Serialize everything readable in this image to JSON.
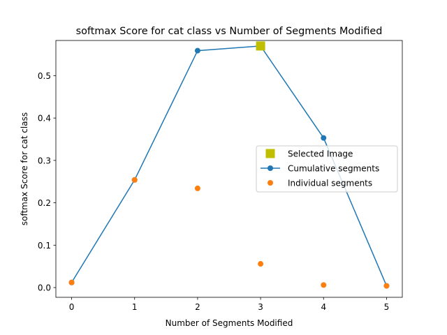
{
  "chart_data": {
    "type": "line",
    "title": "softmax Score for cat class vs Number of Segments Modified",
    "xlabel": "Number of Segments Modified",
    "ylabel": "softmax Score for cat class",
    "xlim": [
      -0.25,
      5.25
    ],
    "ylim": [
      -0.023,
      0.583
    ],
    "xticks": [
      "0",
      "1",
      "2",
      "3",
      "4",
      "5"
    ],
    "yticks": [
      "0.0",
      "0.1",
      "0.2",
      "0.3",
      "0.4",
      "0.5"
    ],
    "grid": false,
    "legend_position": "center-right",
    "series": [
      {
        "name": "Selected Image",
        "kind": "marker",
        "marker": "square",
        "color": "#bfbf00",
        "x": [
          3
        ],
        "y": [
          0.57
        ]
      },
      {
        "name": "Cumulative segments",
        "kind": "line",
        "marker": "circle",
        "color": "#1f77b4",
        "x": [
          0,
          1,
          2,
          3,
          4,
          5
        ],
        "y": [
          0.012,
          0.254,
          0.559,
          0.57,
          0.353,
          0.004
        ]
      },
      {
        "name": "Individual segments",
        "kind": "scatter",
        "marker": "circle",
        "color": "#ff7f0e",
        "x": [
          0,
          1,
          2,
          3,
          4,
          5
        ],
        "y": [
          0.012,
          0.254,
          0.234,
          0.056,
          0.006,
          0.004
        ]
      }
    ]
  }
}
